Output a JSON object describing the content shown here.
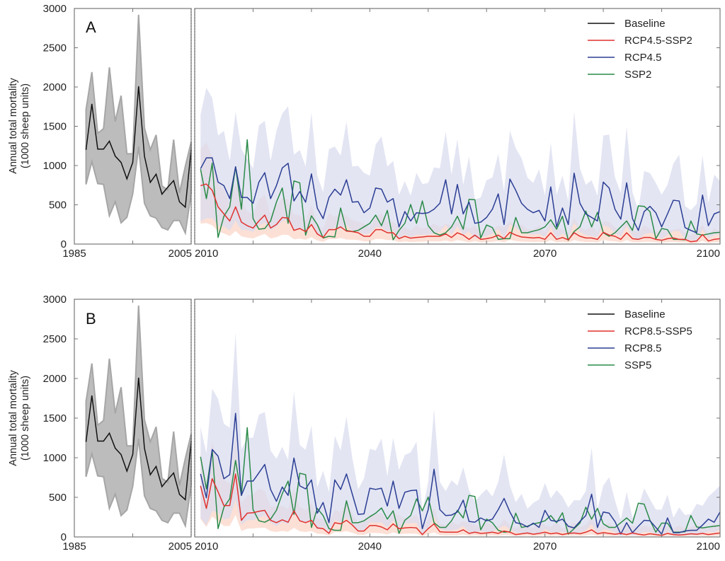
{
  "chart_data": [
    {
      "type": "line",
      "panel_label": "A",
      "ylabel_line1": "Annual total mortality",
      "ylabel_line2": "(1000 sheep units)",
      "ylim": [
        0,
        3000
      ],
      "yticks": [
        "0",
        "500",
        "1000",
        "1500",
        "2000",
        "2500",
        "3000"
      ],
      "xlim_baseline": [
        1985,
        2005
      ],
      "xlim_projection": [
        2010,
        2100
      ],
      "xtick_labels_baseline": [
        "1985",
        "2005"
      ],
      "xtick_labels_projection": [
        "2010",
        "2040",
        "2070",
        "2100"
      ],
      "legend": [
        "Baseline",
        "RCP4.5-SSP2",
        "RCP4.5",
        "SSP2"
      ],
      "legend_position": "top-right",
      "baseline": {
        "name": "Baseline",
        "color": "#111111",
        "x_start": 1987,
        "values": [
          1200,
          1785,
          1210,
          1210,
          1310,
          1120,
          1040,
          830,
          1040,
          2010,
          1120,
          785,
          890,
          635,
          725,
          808,
          537,
          470,
          1207
        ],
        "band_upper": [
          1710,
          2190,
          1410,
          1470,
          2250,
          1560,
          1890,
          1150,
          1150,
          2920,
          1480,
          1200,
          1390,
          740,
          690,
          1330,
          650,
          990,
          1300
        ],
        "band_lower": [
          760,
          1050,
          770,
          760,
          360,
          540,
          270,
          340,
          640,
          1240,
          520,
          360,
          330,
          210,
          180,
          300,
          300,
          140,
          650
        ]
      },
      "series": [
        {
          "name": "RCP4.5-SSP2",
          "color": "#e0312f",
          "band_color": "#fbd6c8",
          "x_start": 2011,
          "values": [
            744,
            765,
            684,
            474,
            384,
            294,
            474,
            279,
            234,
            204,
            294,
            369,
            204,
            249,
            339,
            330,
            174,
            198,
            159,
            249,
            129,
            84,
            183,
            183,
            219,
            165,
            159,
            144,
            99,
            99,
            183,
            183,
            144,
            144,
            69,
            99,
            75,
            84,
            90,
            99,
            99,
            99,
            129,
            84,
            144,
            114,
            60,
            114,
            60,
            69,
            84,
            114,
            69,
            150,
            114,
            90,
            84,
            78,
            84,
            60,
            144,
            60,
            84,
            54,
            144,
            99,
            78,
            78,
            60,
            150,
            114,
            99,
            60,
            144,
            69,
            60,
            84,
            84,
            60,
            48,
            69,
            78,
            60,
            60,
            30,
            39,
            120,
            39,
            60,
            69
          ]
        },
        {
          "name": "RCP4.5",
          "color": "#2b3e94",
          "band_color": "#d9dcef",
          "x_start": 2011,
          "values": [
            960,
            1098,
            1098,
            789,
            744,
            579,
            984,
            594,
            594,
            519,
            789,
            909,
            579,
            744,
            969,
            1029,
            549,
            669,
            534,
            894,
            459,
            324,
            594,
            699,
            624,
            819,
            534,
            540,
            399,
            459,
            714,
            699,
            534,
            579,
            219,
            414,
            294,
            399,
            390,
            399,
            444,
            519,
            819,
            384,
            759,
            384,
            534,
            264,
            279,
            339,
            444,
            639,
            249,
            828,
            684,
            519,
            444,
            399,
            429,
            294,
            729,
            219,
            459,
            249,
            903,
            519,
            384,
            339,
            294,
            789,
            714,
            444,
            318,
            780,
            324,
            174,
            414,
            480,
            399,
            219,
            384,
            558,
            549,
            210,
            174,
            144,
            624,
            234,
            384,
            414
          ]
        },
        {
          "name": "SSP2",
          "color": "#2a8a48",
          "x_start": 2011,
          "values": [
            954,
            579,
            1029,
            84,
            354,
            474,
            984,
            444,
            1329,
            324,
            189,
            198,
            294,
            534,
            714,
            264,
            804,
            780,
            114,
            360,
            249,
            78,
            99,
            90,
            459,
            174,
            159,
            174,
            219,
            264,
            369,
            234,
            429,
            54,
            174,
            264,
            504,
            264,
            549,
            234,
            144,
            114,
            144,
            219,
            354,
            189,
            570,
            564,
            78,
            243,
            210,
            60,
            69,
            69,
            339,
            144,
            144,
            165,
            183,
            219,
            309,
            189,
            354,
            48,
            159,
            219,
            420,
            219,
            405,
            144,
            99,
            144,
            219,
            294,
            174,
            486,
            480,
            414,
            69,
            198,
            183,
            60,
            60,
            54,
            294,
            129,
            114,
            129,
            144,
            150
          ]
        }
      ]
    },
    {
      "type": "line",
      "panel_label": "B",
      "ylabel_line1": "Annual total mortality",
      "ylabel_line2": "(1000 sheep units)",
      "ylim": [
        0,
        3000
      ],
      "yticks": [
        "0",
        "500",
        "1000",
        "1500",
        "2000",
        "2500",
        "3000"
      ],
      "xlim_baseline": [
        1985,
        2005
      ],
      "xlim_projection": [
        2010,
        2100
      ],
      "xtick_labels_baseline": [
        "1985",
        "2005"
      ],
      "xtick_labels_projection": [
        "2010",
        "2040",
        "2070",
        "2100"
      ],
      "legend": [
        "Baseline",
        "RCP8.5-SSP5",
        "RCP8.5",
        "SSP5"
      ],
      "legend_position": "top-right",
      "baseline": {
        "name": "Baseline",
        "color": "#111111",
        "x_start": 1987,
        "values": [
          1200,
          1785,
          1210,
          1210,
          1310,
          1120,
          1040,
          830,
          1040,
          2010,
          1120,
          785,
          890,
          635,
          725,
          808,
          537,
          470,
          1207
        ],
        "band_upper": [
          1710,
          2190,
          1410,
          1470,
          2250,
          1560,
          1890,
          1150,
          1150,
          2920,
          1480,
          1200,
          1390,
          740,
          690,
          1330,
          650,
          990,
          1300
        ],
        "band_lower": [
          760,
          1050,
          770,
          760,
          360,
          540,
          270,
          340,
          640,
          1240,
          520,
          360,
          330,
          210,
          180,
          300,
          300,
          140,
          650
        ]
      },
      "series": [
        {
          "name": "RCP8.5-SSP5",
          "color": "#e0312f",
          "band_color": "#fbd6c8",
          "x_start": 2011,
          "values": [
            645,
            360,
            735,
            570,
            396,
            396,
            795,
            210,
            300,
            306,
            324,
            336,
            210,
            180,
            216,
            186,
            330,
            204,
            180,
            210,
            114,
            105,
            45,
            180,
            165,
            210,
            150,
            75,
            75,
            144,
            144,
            126,
            90,
            165,
            105,
            114,
            120,
            114,
            30,
            105,
            165,
            66,
            60,
            60,
            60,
            90,
            45,
            60,
            45,
            50,
            60,
            45,
            75,
            60,
            30,
            40,
            50,
            35,
            45,
            60,
            40,
            50,
            30,
            45,
            50,
            40,
            60,
            90,
            40,
            55,
            45,
            35,
            45,
            30,
            50,
            35,
            25,
            40,
            30,
            20,
            45,
            30,
            25,
            30,
            40,
            35,
            45,
            30,
            40,
            50
          ]
        },
        {
          "name": "RCP8.5",
          "color": "#2b3e94",
          "band_color": "#d9dcef",
          "x_start": 2011,
          "values": [
            795,
            495,
            1104,
            1020,
            735,
            786,
            1560,
            525,
            705,
            705,
            810,
            915,
            600,
            450,
            630,
            525,
            996,
            645,
            606,
            720,
            300,
            435,
            180,
            720,
            600,
            795,
            540,
            285,
            291,
            615,
            600,
            615,
            390,
            705,
            360,
            564,
            585,
            591,
            105,
            345,
            855,
            345,
            270,
            276,
            315,
            465,
            195,
            186,
            240,
            204,
            225,
            345,
            486,
            315,
            180,
            165,
            126,
            174,
            120,
            336,
            210,
            195,
            225,
            135,
            114,
            195,
            270,
            540,
            120,
            315,
            300,
            195,
            36,
            180,
            54,
            135,
            210,
            204,
            120,
            36,
            240,
            54,
            54,
            75,
            84,
            84,
            150,
            225,
            186,
            315
          ]
        },
        {
          "name": "SSP5",
          "color": "#2a8a48",
          "x_start": 2011,
          "values": [
            1011,
            606,
            1095,
            105,
            375,
            480,
            966,
            525,
            1380,
            345,
            204,
            186,
            225,
            336,
            546,
            705,
            285,
            804,
            786,
            120,
            360,
            270,
            105,
            84,
            84,
            456,
            180,
            180,
            204,
            255,
            300,
            366,
            225,
            330,
            45,
            210,
            270,
            480,
            330,
            504,
            180,
            120,
            120,
            204,
            336,
            240,
            525,
            510,
            90,
            225,
            180,
            84,
            60,
            66,
            300,
            120,
            135,
            165,
            180,
            204,
            270,
            180,
            306,
            36,
            105,
            174,
            375,
            225,
            360,
            165,
            120,
            120,
            180,
            240,
            174,
            426,
            414,
            210,
            60,
            174,
            174,
            60,
            60,
            66,
            270,
            126,
            114,
            126,
            135,
            144
          ]
        }
      ]
    }
  ]
}
